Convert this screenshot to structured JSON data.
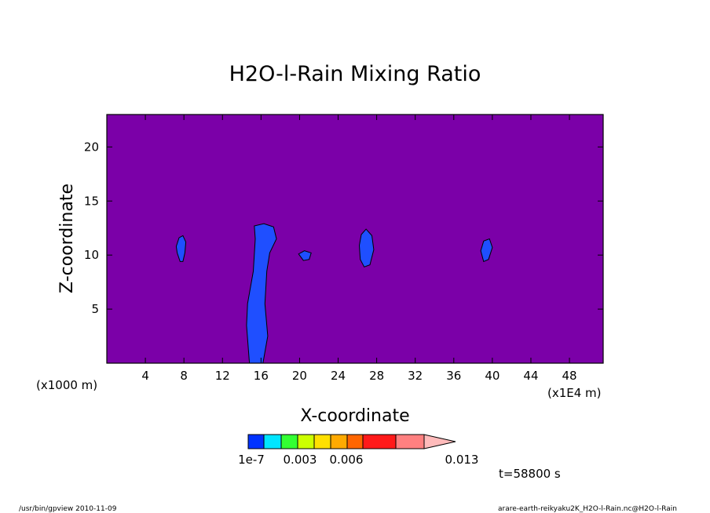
{
  "chart_data": {
    "type": "heatmap",
    "title": "H2O-l-Rain Mixing Ratio",
    "xlabel": "X-coordinate",
    "ylabel": "Z-coordinate",
    "x_unit_left": "(x1000 m)",
    "x_unit_right": "(x1E4 m)",
    "xlim": [
      0,
      51.5
    ],
    "ylim": [
      0,
      23
    ],
    "x_ticks": [
      4,
      8,
      12,
      16,
      20,
      24,
      28,
      32,
      36,
      40,
      44,
      48
    ],
    "y_ticks": [
      5,
      10,
      15,
      20
    ],
    "background_color": "#7b00a8",
    "colorbar": {
      "colors": [
        "#0033ff",
        "#00e5ff",
        "#33ff33",
        "#ccff00",
        "#ffe000",
        "#ffaa00",
        "#ff6600",
        "#ff1a1a",
        "#ff8080",
        "#ffbbbb"
      ],
      "tick_labels": [
        "1e-7",
        "0.003",
        "0.006",
        "0.013"
      ]
    },
    "regions": [
      {
        "name": "cloud-column",
        "level": "1e-7",
        "color": "#1f4fff",
        "points": [
          [
            14.8,
            0
          ],
          [
            14.5,
            3.5
          ],
          [
            14.6,
            5.5
          ],
          [
            15.2,
            8.5
          ],
          [
            15.4,
            11.5
          ],
          [
            15.3,
            12.7
          ],
          [
            16.3,
            12.9
          ],
          [
            17.3,
            12.6
          ],
          [
            17.6,
            11.5
          ],
          [
            16.9,
            10.2
          ],
          [
            16.6,
            8.5
          ],
          [
            16.4,
            5.5
          ],
          [
            16.7,
            2.5
          ],
          [
            16.2,
            0
          ]
        ]
      },
      {
        "name": "cell-x8",
        "level": "1e-7",
        "color": "#1f4fff",
        "points": [
          [
            7.2,
            10.8
          ],
          [
            7.5,
            11.6
          ],
          [
            7.9,
            11.8
          ],
          [
            8.2,
            11.2
          ],
          [
            8.1,
            10.2
          ],
          [
            7.9,
            9.4
          ],
          [
            7.6,
            9.4
          ],
          [
            7.3,
            10.2
          ]
        ]
      },
      {
        "name": "cell-x20",
        "level": "1e-7",
        "color": "#1f4fff",
        "points": [
          [
            19.9,
            10.1
          ],
          [
            20.5,
            10.4
          ],
          [
            21.2,
            10.2
          ],
          [
            21.0,
            9.6
          ],
          [
            20.4,
            9.5
          ]
        ]
      },
      {
        "name": "cell-x27",
        "level": "1e-7",
        "color": "#1f4fff",
        "points": [
          [
            26.2,
            10.9
          ],
          [
            26.4,
            11.9
          ],
          [
            26.9,
            12.4
          ],
          [
            27.5,
            11.8
          ],
          [
            27.7,
            10.5
          ],
          [
            27.3,
            9.1
          ],
          [
            26.7,
            8.9
          ],
          [
            26.3,
            9.6
          ]
        ]
      },
      {
        "name": "cell-x39",
        "level": "1e-7",
        "color": "#1f4fff",
        "points": [
          [
            38.8,
            10.4
          ],
          [
            39.1,
            11.3
          ],
          [
            39.7,
            11.5
          ],
          [
            40.0,
            10.7
          ],
          [
            39.6,
            9.6
          ],
          [
            39.1,
            9.4
          ]
        ]
      }
    ]
  },
  "time_label": "t=58800 s",
  "footer": {
    "left": "/usr/bin/gpview   2010-11-09",
    "right": "arare-earth-reikyaku2K_H2O-l-Rain.nc@H2O-l-Rain"
  }
}
